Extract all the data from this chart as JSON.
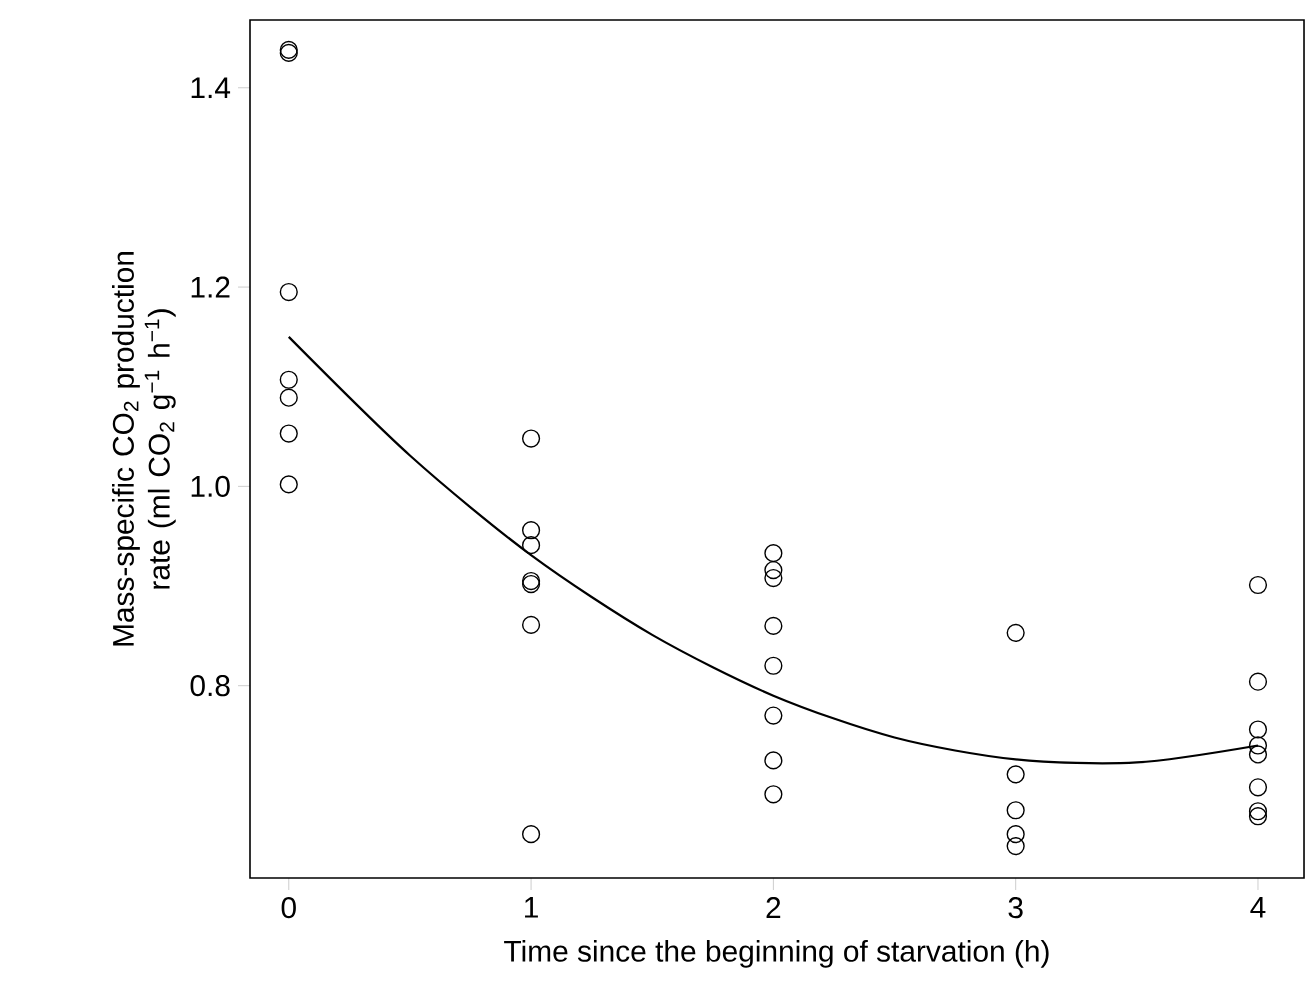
{
  "chart_data": {
    "type": "scatter",
    "xlabel": "Time since the beginning of starvation (h)",
    "ylabel": "Mass-specific CO$_{2}$ production rate (ml CO$_{2}$ g$^{−1}$ h$^{−1}$)",
    "xlim": [
      -0.16,
      4.19
    ],
    "ylim": [
      0.607,
      1.468
    ],
    "xticks": [
      0,
      1,
      2,
      3,
      4
    ],
    "yticks": [
      {
        "value": 0.8,
        "label": "0.8"
      },
      {
        "value": 1.0,
        "label": "1.0"
      },
      {
        "value": 1.2,
        "label": "1.2"
      },
      {
        "value": 1.4,
        "label": "1.4"
      }
    ],
    "marker": "circle",
    "series": [
      {
        "color": "#000000",
        "x": [
          0,
          0,
          0,
          0,
          0,
          0,
          0,
          1,
          1,
          1,
          1,
          1,
          1,
          1,
          2,
          2,
          2,
          2,
          2,
          2,
          2,
          2,
          3,
          3,
          3,
          3,
          3,
          4,
          4,
          4,
          4,
          4,
          4,
          4,
          4
        ],
        "values": [
          1.438,
          1.435,
          1.195,
          1.107,
          1.089,
          1.053,
          1.002,
          1.048,
          0.956,
          0.941,
          0.905,
          0.902,
          0.861,
          0.651,
          0.933,
          0.916,
          0.908,
          0.86,
          0.82,
          0.77,
          0.725,
          0.691,
          0.853,
          0.711,
          0.675,
          0.651,
          0.639,
          0.901,
          0.804,
          0.756,
          0.74,
          0.731,
          0.698,
          0.674,
          0.669
        ]
      },
      {
        "type": "line",
        "color": "#000000",
        "marker": "none",
        "x": [
          0,
          0.5,
          1,
          1.5,
          2,
          2.5,
          3,
          3.5,
          4
        ],
        "values": [
          1.15,
          1.031,
          0.931,
          0.851,
          0.79,
          0.748,
          0.726,
          0.723,
          0.74
        ]
      }
    ]
  }
}
